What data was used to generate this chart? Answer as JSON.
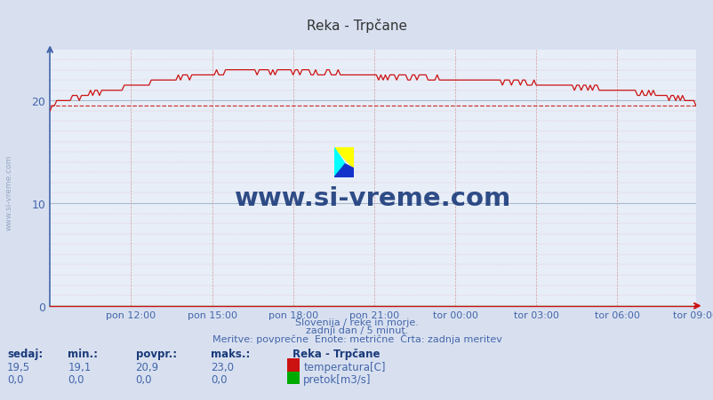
{
  "title": "Reka - Trpčane",
  "subtitle1": "Slovenija / reke in morje.",
  "subtitle2": "zadnji dan / 5 minut.",
  "subtitle3": "Meritve: povprečne  Enote: metrične  Črta: zadnja meritev",
  "bg_color": "#d8e0f0",
  "plot_bg_color": "#e8eef8",
  "grid_color_major": "#aabbcc",
  "ylim": [
    0,
    25
  ],
  "yticks": [
    0,
    10,
    20
  ],
  "tick_color": "#4466aa",
  "title_color": "#333333",
  "temp_line_color": "#cc1111",
  "temp_avg_color": "#cc3333",
  "pretok_color": "#00aa00",
  "watermark_color": "#1a3a7a",
  "xtick_labels": [
    "pon 12:00",
    "pon 15:00",
    "pon 18:00",
    "pon 21:00",
    "tor 00:00",
    "tor 03:00",
    "tor 06:00",
    "tor 09:00"
  ],
  "legend_title": "Reka - Trpčane",
  "sedaj_label": "sedaj:",
  "min_label": "min.:",
  "povpr_label": "povpr.:",
  "maks_label": "maks.:",
  "temp_label": "temperatura[C]",
  "pretok_label": "pretok[m3/s]",
  "sedaj_temp": "19,5",
  "min_temp": "19,1",
  "povpr_temp": "20,9",
  "maks_temp": "23,0",
  "sedaj_pretok": "0,0",
  "min_pretok": "0,0",
  "povpr_pretok": "0,0",
  "maks_pretok": "0,0",
  "avg_temp": 19.5,
  "n_points": 288,
  "hours_shown": 21
}
